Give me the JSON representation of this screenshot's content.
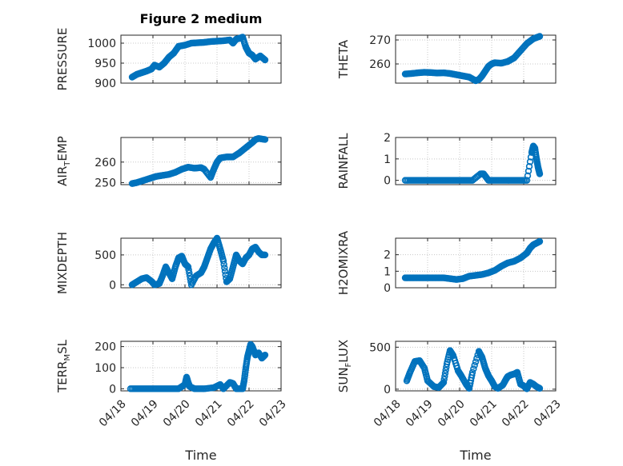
{
  "colors": {
    "marker": "#0072BD",
    "axis": "#262626",
    "grid": "#c8c8c8"
  },
  "chart_data": [
    {
      "type": "scatter",
      "panel": "PRESSURE",
      "title": "Figure 2 medium",
      "ylabel_main": "PRESSURE",
      "ylabel_sub": "",
      "ylim": [
        900,
        1020
      ],
      "yticks": [
        900,
        950,
        1000
      ],
      "ytick_labels": [
        "900",
        "950",
        "1000"
      ],
      "xlim": [
        0,
        5
      ],
      "xticks": [
        0,
        1,
        2,
        3,
        4,
        5
      ],
      "x": [
        0.35,
        0.5,
        0.65,
        0.8,
        0.95,
        1.05,
        1.2,
        1.35,
        1.5,
        1.65,
        1.8,
        2.0,
        2.2,
        2.4,
        2.6,
        2.8,
        3.0,
        3.2,
        3.4,
        3.5,
        3.6,
        3.7,
        3.8,
        3.9,
        4.0,
        4.1,
        4.2,
        4.35,
        4.5
      ],
      "y": [
        915,
        922,
        926,
        930,
        935,
        945,
        940,
        950,
        965,
        975,
        992,
        995,
        1000,
        1001,
        1002,
        1004,
        1005,
        1006,
        1008,
        1000,
        1010,
        1012,
        1015,
        990,
        975,
        970,
        960,
        968,
        958
      ]
    },
    {
      "type": "scatter",
      "panel": "THETA",
      "ylabel_main": "THETA",
      "ylabel_sub": "",
      "ylim": [
        252,
        272
      ],
      "yticks": [
        260,
        270
      ],
      "ytick_labels": [
        "260",
        "270"
      ],
      "xlim": [
        0,
        5
      ],
      "xticks": [
        0,
        1,
        2,
        3,
        4,
        5
      ],
      "x": [
        0.3,
        0.5,
        0.7,
        0.9,
        1.1,
        1.3,
        1.5,
        1.7,
        1.9,
        2.1,
        2.3,
        2.5,
        2.6,
        2.7,
        2.8,
        2.9,
        3.0,
        3.1,
        3.3,
        3.5,
        3.7,
        3.9,
        4.1,
        4.3,
        4.5
      ],
      "y": [
        255.8,
        256.0,
        256.3,
        256.5,
        256.4,
        256.2,
        256.3,
        256.0,
        255.5,
        255.0,
        254.5,
        253.0,
        253.5,
        255.0,
        257.0,
        259.0,
        260.0,
        260.5,
        260.3,
        261.0,
        262.5,
        265.5,
        268.5,
        270.5,
        271.5
      ]
    },
    {
      "type": "scatter",
      "panel": "AIR_TEMP",
      "ylabel_main": "AIR",
      "ylabel_sub": "T",
      "ylabel_rest": "EMP",
      "ylim": [
        249,
        272
      ],
      "yticks": [
        250,
        260
      ],
      "ytick_labels": [
        "250",
        "260"
      ],
      "xlim": [
        0,
        5
      ],
      "xticks": [
        0,
        1,
        2,
        3,
        4,
        5
      ],
      "x": [
        0.35,
        0.5,
        0.7,
        0.9,
        1.1,
        1.3,
        1.5,
        1.7,
        1.9,
        2.1,
        2.3,
        2.5,
        2.6,
        2.8,
        2.9,
        3.0,
        3.1,
        3.3,
        3.5,
        3.7,
        3.9,
        4.1,
        4.2,
        4.3,
        4.5
      ],
      "y": [
        249.5,
        250.0,
        251.0,
        252.0,
        253.0,
        253.5,
        254.0,
        255.0,
        256.5,
        257.5,
        257.0,
        257.3,
        256.5,
        252.5,
        256.5,
        260.0,
        262.0,
        262.5,
        262.5,
        264.5,
        267.0,
        269.5,
        271.0,
        271.5,
        271.0
      ]
    },
    {
      "type": "scatter",
      "panel": "RAINFALL",
      "ylabel_main": "RAINFALL",
      "ylabel_sub": "",
      "ylim": [
        -0.2,
        2.0
      ],
      "yticks": [
        0,
        1,
        2
      ],
      "ytick_labels": [
        "0",
        "1",
        "2"
      ],
      "xlim": [
        0,
        5
      ],
      "xticks": [
        0,
        1,
        2,
        3,
        4,
        5
      ],
      "x": [
        0.3,
        0.6,
        0.9,
        1.2,
        1.5,
        1.8,
        2.1,
        2.4,
        2.65,
        2.7,
        2.75,
        2.9,
        3.2,
        3.5,
        3.8,
        4.1,
        4.25,
        4.3,
        4.35,
        4.4,
        4.45,
        4.5
      ],
      "y": [
        0,
        0,
        0,
        0,
        0,
        0,
        0,
        0,
        0.3,
        0.3,
        0.3,
        0,
        0,
        0,
        0,
        0,
        1.3,
        1.6,
        1.5,
        1.0,
        0.6,
        0.3
      ]
    },
    {
      "type": "scatter",
      "panel": "MIXDEPTH",
      "ylabel_main": "MIXDEPTH",
      "ylabel_sub": "",
      "ylim": [
        -50,
        780
      ],
      "yticks": [
        0,
        500
      ],
      "ytick_labels": [
        "0",
        "500"
      ],
      "xlim": [
        0,
        5
      ],
      "xticks": [
        0,
        1,
        2,
        3,
        4,
        5
      ],
      "x": [
        0.35,
        0.5,
        0.65,
        0.8,
        0.95,
        1.05,
        1.2,
        1.3,
        1.4,
        1.5,
        1.6,
        1.7,
        1.8,
        1.9,
        2.0,
        2.1,
        2.2,
        2.35,
        2.5,
        2.6,
        2.7,
        2.8,
        2.9,
        3.0,
        3.1,
        3.2,
        3.3,
        3.4,
        3.5,
        3.6,
        3.7,
        3.8,
        3.9,
        4.0,
        4.1,
        4.2,
        4.3,
        4.4,
        4.5
      ],
      "y": [
        0,
        50,
        100,
        120,
        60,
        0,
        20,
        150,
        300,
        200,
        100,
        300,
        450,
        480,
        350,
        300,
        0,
        150,
        200,
        300,
        450,
        600,
        700,
        780,
        600,
        400,
        50,
        100,
        300,
        500,
        400,
        350,
        450,
        500,
        600,
        630,
        550,
        500,
        500
      ]
    },
    {
      "type": "scatter",
      "panel": "H2OMIXRA",
      "ylabel_main": "H2OMIXRA",
      "ylabel_sub": "",
      "ylim": [
        0,
        3.0
      ],
      "yticks": [
        0,
        1,
        2
      ],
      "ytick_labels": [
        "0",
        "1",
        "2"
      ],
      "xlim": [
        0,
        5
      ],
      "xticks": [
        0,
        1,
        2,
        3,
        4,
        5
      ],
      "x": [
        0.3,
        0.5,
        0.7,
        0.9,
        1.1,
        1.3,
        1.5,
        1.7,
        1.9,
        2.1,
        2.3,
        2.5,
        2.7,
        2.9,
        3.1,
        3.3,
        3.5,
        3.7,
        3.9,
        4.1,
        4.2,
        4.3,
        4.4,
        4.5
      ],
      "y": [
        0.6,
        0.6,
        0.6,
        0.6,
        0.6,
        0.6,
        0.6,
        0.55,
        0.5,
        0.55,
        0.7,
        0.75,
        0.8,
        0.9,
        1.05,
        1.3,
        1.5,
        1.6,
        1.8,
        2.1,
        2.4,
        2.6,
        2.7,
        2.8
      ]
    },
    {
      "type": "scatter",
      "panel": "TERR_MSL",
      "ylabel_main": "TERR",
      "ylabel_sub": "M",
      "ylabel_rest": "SL",
      "ylim": [
        -10,
        225
      ],
      "yticks": [
        0,
        100,
        200
      ],
      "ytick_labels": [
        "0",
        "100",
        "200"
      ],
      "xlim": [
        0,
        5
      ],
      "xticks": [
        0,
        1,
        2,
        3,
        4,
        5
      ],
      "x": [
        0.3,
        0.6,
        0.9,
        1.2,
        1.5,
        1.8,
        2.0,
        2.05,
        2.1,
        2.15,
        2.3,
        2.6,
        2.9,
        3.1,
        3.2,
        3.4,
        3.5,
        3.6,
        3.8,
        3.85,
        3.9,
        3.95,
        4.0,
        4.05,
        4.1,
        4.15,
        4.2,
        4.3,
        4.4,
        4.5
      ],
      "y": [
        0,
        0,
        0,
        0,
        0,
        0,
        20,
        55,
        30,
        10,
        0,
        0,
        5,
        20,
        0,
        30,
        25,
        0,
        0,
        40,
        100,
        150,
        180,
        210,
        200,
        180,
        160,
        170,
        145,
        160
      ]
    },
    {
      "type": "scatter",
      "panel": "SUN_FLUX",
      "ylabel_main": "SUN",
      "ylabel_sub": "F",
      "ylabel_rest": "LUX",
      "ylim": [
        -20,
        570
      ],
      "yticks": [
        0,
        500
      ],
      "ytick_labels": [
        "0",
        "500"
      ],
      "xlim": [
        0,
        5
      ],
      "xticks": [
        0,
        1,
        2,
        3,
        4,
        5
      ],
      "x": [
        0.35,
        0.45,
        0.6,
        0.75,
        0.9,
        1.0,
        1.2,
        1.35,
        1.5,
        1.6,
        1.7,
        1.8,
        1.95,
        2.05,
        2.2,
        2.3,
        2.4,
        2.6,
        2.7,
        2.8,
        2.9,
        3.0,
        3.1,
        3.2,
        3.35,
        3.45,
        3.5,
        3.6,
        3.7,
        3.8,
        3.9,
        4.0,
        4.05,
        4.1,
        4.2,
        4.3,
        4.4,
        4.5
      ],
      "y": [
        100,
        200,
        330,
        340,
        250,
        100,
        30,
        20,
        80,
        300,
        460,
        400,
        220,
        160,
        60,
        10,
        200,
        450,
        380,
        250,
        160,
        100,
        30,
        10,
        50,
        120,
        150,
        170,
        180,
        200,
        60,
        40,
        20,
        5,
        80,
        60,
        30,
        10
      ]
    }
  ],
  "shared_x": {
    "tick_labels": [
      "04/18",
      "04/19",
      "04/20",
      "04/21",
      "04/22",
      "04/23"
    ],
    "xlabel": "Time"
  }
}
